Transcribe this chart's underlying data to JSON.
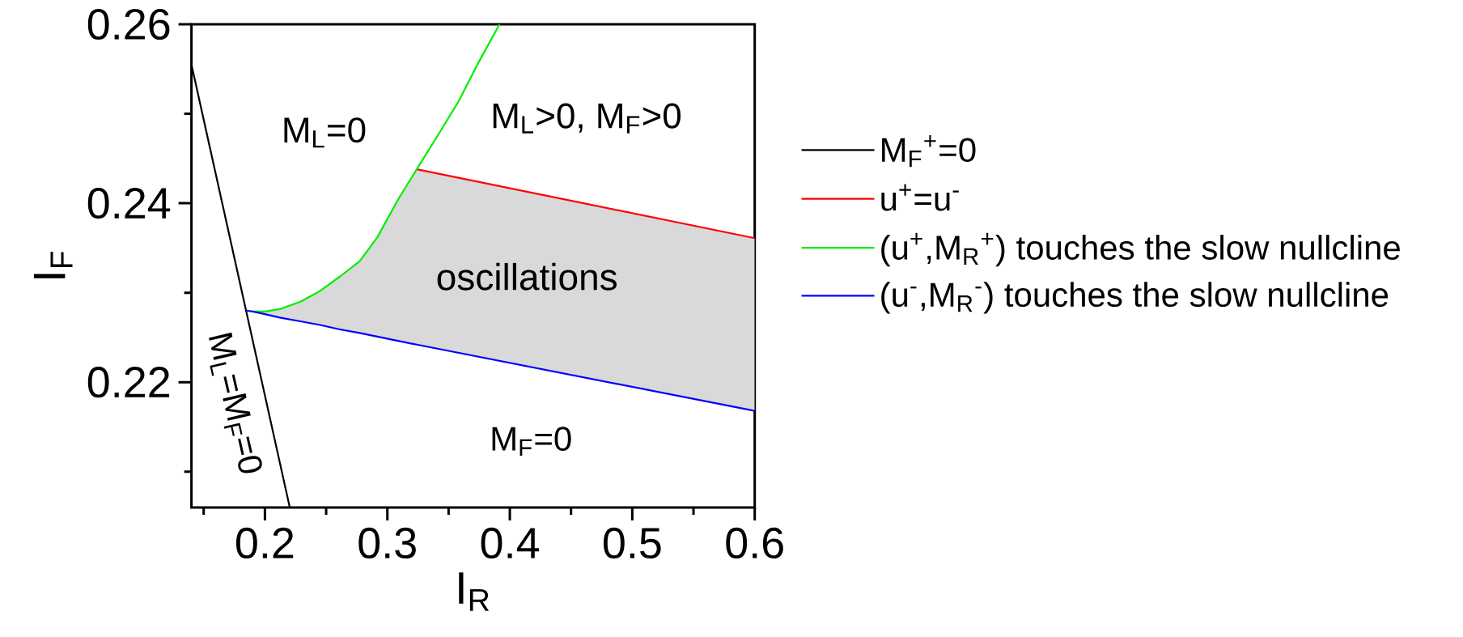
{
  "chart_data": {
    "type": "line",
    "xlabel": "I$_{R}$",
    "ylabel": "I$_{F}$",
    "xlim": [
      0.14,
      0.6
    ],
    "ylim": [
      0.206,
      0.26
    ],
    "xticks": [
      0.2,
      0.3,
      0.4,
      0.5,
      0.6
    ],
    "yticks": [
      0.22,
      0.24,
      0.26
    ],
    "legend": "right",
    "series": [
      {
        "name": "M$_{F}$$^{+}$=0",
        "color": "#000000",
        "x": [
          0.14,
          0.2203
        ],
        "values": [
          0.2555,
          0.206
        ]
      },
      {
        "name": "u$^{+}$=u$^{-}$",
        "color": "#ff0000",
        "x": [
          0.324,
          0.6
        ],
        "values": [
          0.2438,
          0.2361
        ]
      },
      {
        "name": "(u$^{+}$,M$_{R}$$^{+}$) touches the slow nullcline",
        "color": "#00ee00",
        "x": [
          0.19,
          0.2,
          0.2129,
          0.229,
          0.2451,
          0.2612,
          0.2773,
          0.2918,
          0.3095,
          0.324,
          0.3417,
          0.3578,
          0.3739,
          0.3916
        ],
        "values": [
          0.2279,
          0.2279,
          0.2282,
          0.229,
          0.2302,
          0.2318,
          0.2335,
          0.2362,
          0.2406,
          0.2438,
          0.2477,
          0.2513,
          0.2556,
          0.26
        ]
      },
      {
        "name": "(u$^{-}$,M$_{R}$$^{-}$) touches the slow nullcline",
        "color": "#0000ff",
        "x": [
          0.1849,
          0.19,
          0.2,
          0.2129,
          0.229,
          0.2451,
          0.2612,
          0.2773,
          0.2918,
          0.3095,
          0.324,
          0.6
        ],
        "values": [
          0.228,
          0.2279,
          0.2276,
          0.2272,
          0.2268,
          0.2264,
          0.2259,
          0.2255,
          0.2251,
          0.2246,
          0.2242,
          0.2168
        ],
        "lower": [
          0.228,
          0.2279,
          0.2276,
          0.2272,
          0.2268,
          0.2264,
          0.2259,
          0.2255,
          0.2251,
          0.2246,
          0.2242,
          0.2168
        ],
        "upper": [
          0.228,
          0.2279,
          0.2279,
          0.2282,
          0.229,
          0.2302,
          0.2318,
          0.2335,
          0.2362,
          0.2406,
          0.2438,
          0.2361
        ]
      }
    ],
    "annotations": [
      "M$_{L}$=0",
      "M$_{L}$>0, M$_{F}$>0",
      "oscillations",
      "M$_{F}$=0",
      "M$_{L}$=M$_{F}$=0"
    ]
  }
}
